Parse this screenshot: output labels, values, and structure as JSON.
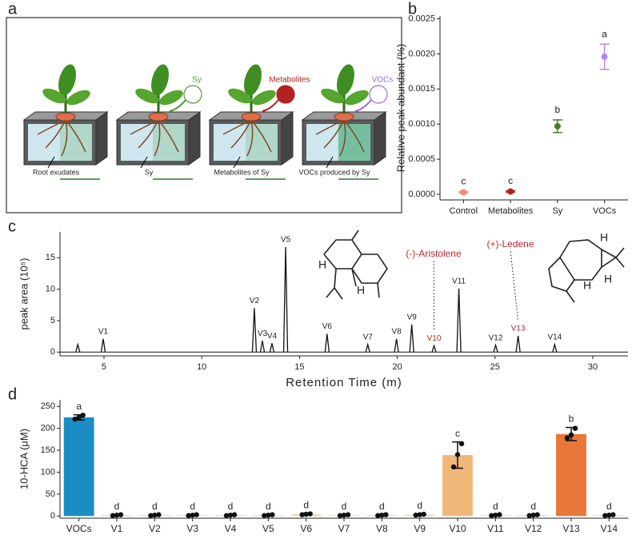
{
  "panel_labels": [
    "a",
    "b",
    "c",
    "d"
  ],
  "diagram": {
    "callouts": [
      {
        "text": "Sy",
        "color": "#4e9a3a"
      },
      {
        "text": "Metabolites",
        "color": "#b22222"
      },
      {
        "text": "VOCs",
        "color": "#9b6fd6"
      }
    ],
    "captions": [
      "Root exudates",
      "Sy",
      "Metabolites of Sy",
      "VOCs produced by Sy"
    ]
  },
  "chart_data": [
    {
      "type": "dot",
      "ylabel": "Relative peak abundant (%)",
      "categories": [
        "Control",
        "Metabolites",
        "Sy",
        "VOCs"
      ],
      "values": [
        3e-05,
        4e-05,
        0.00097,
        0.00196
      ],
      "errors": [
        1e-05,
        1e-05,
        9e-05,
        0.00018
      ],
      "letters": [
        "c",
        "c",
        "b",
        "a"
      ],
      "colors": [
        "#f08a80",
        "#b22222",
        "#4a7a2a",
        "#b985e8"
      ],
      "ylim": [
        -8e-05,
        0.00254
      ],
      "yticks": [
        {
          "value": 0,
          "label": "0.0000"
        },
        {
          "value": 0.0005,
          "label": "0.0005"
        },
        {
          "value": 0.001,
          "label": "0.0010"
        },
        {
          "value": 0.0015,
          "label": "0.0015"
        },
        {
          "value": 0.002,
          "label": "0.0020"
        },
        {
          "value": 0.0025,
          "label": "0.0025"
        }
      ]
    },
    {
      "type": "chromatogram",
      "xlabel": "Retention Time (m)",
      "ylabel": "peak area (10⁵)",
      "x": [
        3.66,
        4.96,
        12.69,
        13.1,
        13.59,
        14.29,
        16.41,
        18.49,
        19.96,
        20.74,
        21.88,
        23.15,
        25.03,
        26.18,
        28.05
      ],
      "values": [
        1.2,
        2.1,
        7.0,
        1.8,
        1.4,
        16.7,
        2.9,
        1.2,
        2.1,
        4.4,
        1.0,
        10.1,
        1.1,
        2.6,
        1.2
      ],
      "labels": [
        null,
        "V1",
        "V2",
        "V3",
        "V4",
        "V5",
        "V6",
        "V7",
        "V8",
        "V9",
        "V10",
        "V11",
        "V12",
        "V13",
        "V14"
      ],
      "label_colors": [
        "#222222",
        "#222222",
        "#222222",
        "#222222",
        "#222222",
        "#222222",
        "#222222",
        "#222222",
        "#222222",
        "#222222",
        "#c0272d",
        "#222222",
        "#222222",
        "#c0272d",
        "#222222"
      ],
      "compounds": [
        {
          "name": "(-)-Aristolene",
          "atoms": [
            "H",
            "H"
          ]
        },
        {
          "name": "(+)-Ledene",
          "atoms": [
            "H",
            "H",
            "H"
          ]
        }
      ],
      "color": "#111111",
      "xlim": [
        2.75,
        31.8
      ],
      "xticks": [
        5,
        10,
        15,
        20,
        25,
        30
      ],
      "ylim": [
        -0.6,
        19.1
      ],
      "yticks": [
        0,
        5,
        10,
        15
      ]
    },
    {
      "type": "bar",
      "ylabel": "10-HCA (μM)",
      "categories": [
        "VOCs",
        "V1",
        "V2",
        "V3",
        "V4",
        "V5",
        "V6",
        "V7",
        "V8",
        "V9",
        "V10",
        "V11",
        "V12",
        "V13",
        "V14"
      ],
      "values": [
        225,
        2,
        2,
        2,
        2,
        2,
        4,
        2,
        2,
        3,
        139,
        2,
        2,
        187,
        2
      ],
      "errors": [
        6,
        1,
        1,
        1,
        1,
        1,
        1,
        1,
        1,
        1,
        30,
        1,
        1,
        15,
        1
      ],
      "points": [
        [
          221,
          225,
          230
        ],
        [
          1,
          2,
          3
        ],
        [
          1,
          2,
          3
        ],
        [
          1,
          2,
          3
        ],
        [
          1,
          2,
          3
        ],
        [
          1,
          2,
          3
        ],
        [
          3,
          4,
          5
        ],
        [
          1,
          2,
          3
        ],
        [
          1,
          2,
          3
        ],
        [
          2,
          3,
          4
        ],
        [
          112,
          140,
          165
        ],
        [
          1,
          2,
          3
        ],
        [
          1,
          2,
          3
        ],
        [
          178,
          185,
          200
        ],
        [
          1,
          2,
          3
        ]
      ],
      "letters": [
        "a",
        "d",
        "d",
        "d",
        "d",
        "d",
        "d",
        "d",
        "d",
        "d",
        "c",
        "d",
        "d",
        "b",
        "d"
      ],
      "colors": [
        "#1b8dc4",
        "#ead9b5",
        "#ead9b5",
        "#ead9b5",
        "#ead9b5",
        "#ead9b5",
        "#ead9b5",
        "#ead9b5",
        "#ead9b5",
        "#ead9b5",
        "#f2b87a",
        "#ead9b5",
        "#ead9b5",
        "#e8773a",
        "#ead9b5"
      ],
      "ylim": [
        -5,
        265
      ],
      "yticks": [
        0,
        50,
        100,
        150,
        200,
        250
      ]
    }
  ]
}
